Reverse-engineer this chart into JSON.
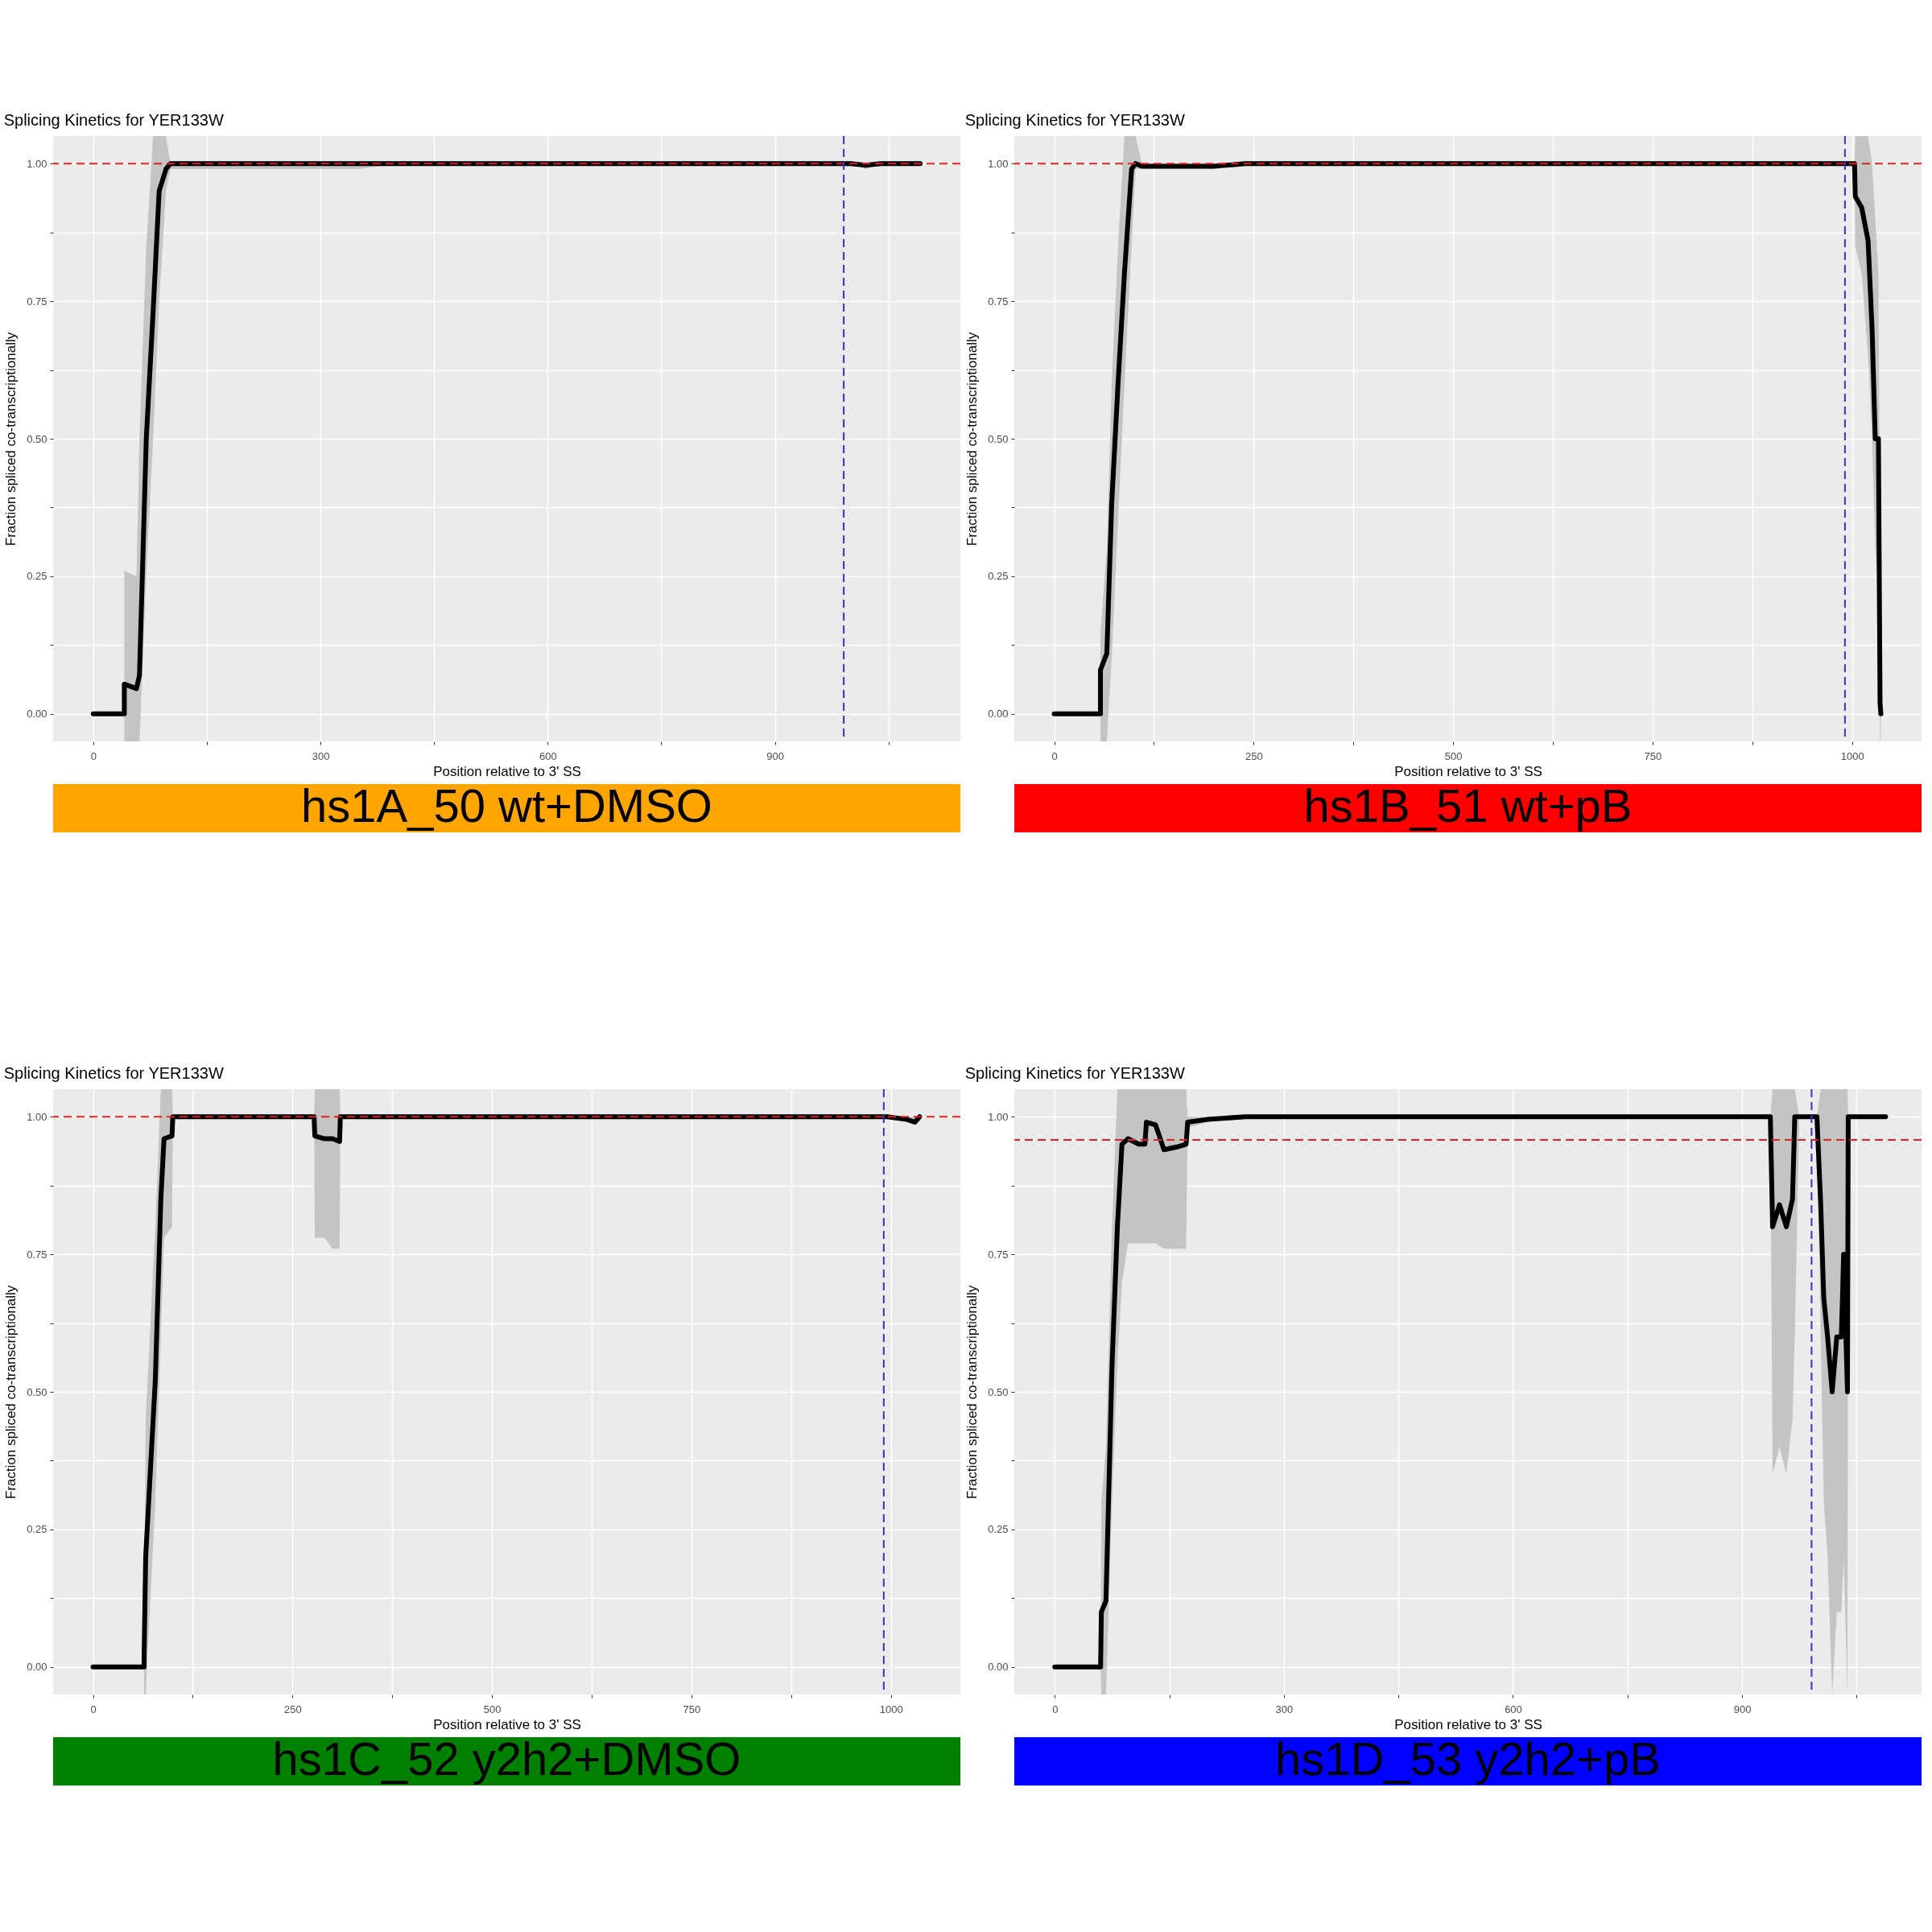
{
  "chart_data": [
    {
      "type": "line",
      "title": "Splicing Kinetics for YER133W",
      "xlabel": "Position relative to 3' SS",
      "ylabel": "Fraction spliced co-transcriptionally",
      "annotations": [
        "hs1A_50 wt+DMSO"
      ],
      "x": [
        0,
        41,
        41,
        57,
        61,
        70,
        79,
        87,
        96,
        102,
        350,
        400,
        1000,
        1020,
        1040,
        1092
      ],
      "series": [
        {
          "color": "#000000",
          "values": [
            0,
            0,
            0.054,
            0.046,
            0.07,
            0.5,
            0.73,
            0.95,
            0.99,
            1.0,
            1.0,
            1.0,
            1.0,
            0.997,
            1.0,
            1.0
          ],
          "lower": [
            0,
            0,
            -0.05,
            -0.05,
            -0.05,
            0.25,
            0.5,
            0.75,
            0.95,
            0.99,
            0.99,
            1.0,
            1.0,
            0.99,
            1.0,
            1.0
          ],
          "upper": [
            0,
            0,
            0.26,
            0.25,
            0.5,
            0.85,
            1.05,
            1.05,
            1.05,
            1.0,
            1.0,
            1.0,
            1.0,
            1.0,
            1.0,
            1.0
          ]
        }
      ],
      "xlim": [
        -53,
        1145
      ],
      "ylim": [
        -0.05,
        1.05
      ],
      "xticks": [
        0,
        {
          "value": 150,
          "label": null
        },
        300,
        {
          "value": 450,
          "label": null
        },
        600,
        {
          "value": 750,
          "label": null
        },
        900,
        {
          "value": 1050,
          "label": null
        }
      ],
      "yticks": [
        {
          "value": 0,
          "label": "0.00"
        },
        {
          "value": 0.125,
          "label": null
        },
        {
          "value": 0.25,
          "label": "0.25"
        },
        {
          "value": 0.375,
          "label": null
        },
        {
          "value": 0.5,
          "label": "0.50"
        },
        {
          "value": 0.625,
          "label": null
        },
        {
          "value": 0.75,
          "label": "0.75"
        },
        {
          "value": 0.875,
          "label": null
        },
        {
          "value": 1,
          "label": "1.00"
        }
      ],
      "grid": true,
      "ref_lines": [
        {
          "axis": "y",
          "value": 1,
          "color": "#dd2222",
          "line_style": "dashed"
        },
        {
          "axis": "x",
          "value": 991,
          "color": "#3333cc",
          "line_style": "dashed"
        }
      ]
    },
    {
      "type": "line",
      "title": "Splicing Kinetics for YER133W",
      "xlabel": "Position relative to 3' SS",
      "ylabel": "Fraction spliced co-transcriptionally",
      "annotations": [
        "hs1B_51 wt+pB"
      ],
      "x": [
        0,
        58,
        58,
        66,
        72,
        80,
        88,
        97,
        102,
        110,
        200,
        240,
        1003,
        1004,
        1012,
        1020,
        1025,
        1029,
        1033,
        1035,
        1036
      ],
      "series": [
        {
          "color": "#000000",
          "values": [
            0,
            0,
            0.08,
            0.11,
            0.38,
            0.6,
            0.8,
            0.99,
            1.0,
            0.995,
            0.995,
            1.0,
            1.0,
            0.94,
            0.92,
            0.86,
            0.7,
            0.5,
            0.5,
            0.02,
            0
          ],
          "lower": [
            0,
            0,
            -0.05,
            -0.05,
            0.1,
            0.35,
            0.6,
            0.85,
            0.99,
            0.99,
            0.99,
            1.0,
            1.0,
            0.85,
            0.8,
            0.65,
            0.5,
            0.3,
            0.2,
            -0.05,
            -0.05
          ],
          "upper": [
            0,
            0,
            0.15,
            0.3,
            0.6,
            0.85,
            1.05,
            1.05,
            1.05,
            1.0,
            1.0,
            1.0,
            1.0,
            1.05,
            1.05,
            1.05,
            1.0,
            0.9,
            0.8,
            0.3,
            0.2
          ]
        }
      ],
      "xlim": [
        -50,
        1087
      ],
      "ylim": [
        -0.05,
        1.05
      ],
      "xticks": [
        0,
        {
          "value": 125,
          "label": null
        },
        250,
        {
          "value": 375,
          "label": null
        },
        500,
        {
          "value": 625,
          "label": null
        },
        750,
        {
          "value": 875,
          "label": null
        },
        1000
      ],
      "yticks": [
        {
          "value": 0,
          "label": "0.00"
        },
        {
          "value": 0.125,
          "label": null
        },
        {
          "value": 0.25,
          "label": "0.25"
        },
        {
          "value": 0.375,
          "label": null
        },
        {
          "value": 0.5,
          "label": "0.50"
        },
        {
          "value": 0.625,
          "label": null
        },
        {
          "value": 0.75,
          "label": "0.75"
        },
        {
          "value": 0.875,
          "label": null
        },
        {
          "value": 1,
          "label": "1.00"
        }
      ],
      "grid": true,
      "ref_lines": [
        {
          "axis": "y",
          "value": 1,
          "color": "#dd2222",
          "line_style": "dashed"
        },
        {
          "axis": "x",
          "value": 991,
          "color": "#3333cc",
          "line_style": "dashed"
        }
      ]
    },
    {
      "type": "line",
      "title": "Splicing Kinetics for YER133W",
      "xlabel": "Position relative to 3' SS",
      "ylabel": "Fraction spliced co-transcriptionally",
      "annotations": [
        "hs1C_52 y2h2+DMSO"
      ],
      "x": [
        0,
        64,
        64,
        66,
        78,
        85,
        89,
        99,
        100,
        277,
        278,
        290,
        300,
        309,
        310,
        995,
        1020,
        1030,
        1036
      ],
      "series": [
        {
          "color": "#000000",
          "values": [
            0,
            0,
            0.02,
            0.2,
            0.52,
            0.85,
            0.96,
            0.965,
            1.0,
            1.0,
            0.965,
            0.96,
            0.96,
            0.955,
            1.0,
            1.0,
            0.995,
            0.99,
            1.0
          ],
          "lower": [
            0,
            0,
            -0.05,
            -0.05,
            0.3,
            0.6,
            0.78,
            0.8,
            1.0,
            1.0,
            0.78,
            0.78,
            0.76,
            0.76,
            1.0,
            1.0,
            0.99,
            0.985,
            1.0
          ],
          "upper": [
            0,
            0,
            0.1,
            0.45,
            0.8,
            1.05,
            1.05,
            1.05,
            1.0,
            1.0,
            1.05,
            1.05,
            1.05,
            1.05,
            1.0,
            1.0,
            1.0,
            1.0,
            1.0
          ]
        }
      ],
      "xlim": [
        -50,
        1087
      ],
      "ylim": [
        -0.05,
        1.05
      ],
      "xticks": [
        0,
        {
          "value": 125,
          "label": null
        },
        250,
        {
          "value": 375,
          "label": null
        },
        500,
        {
          "value": 625,
          "label": null
        },
        750,
        {
          "value": 875,
          "label": null
        },
        1000
      ],
      "yticks": [
        {
          "value": 0,
          "label": "0.00"
        },
        {
          "value": 0.125,
          "label": null
        },
        {
          "value": 0.25,
          "label": "0.25"
        },
        {
          "value": 0.375,
          "label": null
        },
        {
          "value": 0.5,
          "label": "0.50"
        },
        {
          "value": 0.625,
          "label": null
        },
        {
          "value": 0.75,
          "label": "0.75"
        },
        {
          "value": 0.875,
          "label": null
        },
        {
          "value": 1,
          "label": "1.00"
        }
      ],
      "grid": true,
      "ref_lines": [
        {
          "axis": "y",
          "value": 1,
          "color": "#dd2222",
          "line_style": "dashed"
        },
        {
          "axis": "x",
          "value": 991,
          "color": "#3333cc",
          "line_style": "dashed"
        }
      ]
    },
    {
      "type": "line",
      "title": "Splicing Kinetics for YER133W",
      "xlabel": "Position relative to 3' SS",
      "ylabel": "Fraction spliced co-transcriptionally",
      "annotations": [
        "hs1D_53 y2h2+pB"
      ],
      "x": [
        0,
        60,
        61,
        67,
        75,
        82,
        86,
        88,
        96,
        110,
        118,
        120,
        132,
        143,
        160,
        172,
        174,
        200,
        250,
        937,
        940,
        949,
        958,
        966,
        969,
        975,
        998,
        1003,
        1007,
        1012,
        1018,
        1024,
        1030,
        1033,
        1038,
        1039,
        1088
      ],
      "series": [
        {
          "color": "#000000",
          "values": [
            0,
            0,
            0.1,
            0.12,
            0.55,
            0.8,
            0.9,
            0.95,
            0.96,
            0.95,
            0.95,
            0.99,
            0.985,
            0.94,
            0.945,
            0.95,
            0.99,
            0.995,
            1.0,
            1.0,
            0.8,
            0.84,
            0.8,
            0.85,
            1.0,
            1.0,
            1.0,
            0.84,
            0.67,
            0.6,
            0.5,
            0.6,
            0.6,
            0.75,
            0.5,
            1.0,
            1.0
          ],
          "lower": [
            0,
            0,
            -0.05,
            -0.05,
            0.3,
            0.55,
            0.65,
            0.7,
            0.77,
            0.77,
            0.77,
            0.77,
            0.77,
            0.76,
            0.76,
            0.76,
            0.98,
            0.99,
            1.0,
            1.0,
            0.35,
            0.4,
            0.35,
            0.45,
            0.6,
            1.0,
            1.0,
            0.6,
            0.3,
            0.2,
            -0.05,
            0.1,
            0.1,
            0.2,
            -0.05,
            1.0,
            1.0
          ],
          "upper": [
            0,
            0,
            0.3,
            0.4,
            0.8,
            1.05,
            1.05,
            1.05,
            1.05,
            1.05,
            1.05,
            1.05,
            1.05,
            1.05,
            1.05,
            1.05,
            1.0,
            1.0,
            1.0,
            1.0,
            1.05,
            1.05,
            1.05,
            1.05,
            1.05,
            1.0,
            1.0,
            1.05,
            1.05,
            1.05,
            1.05,
            1.05,
            1.05,
            1.05,
            1.05,
            1.0,
            1.0
          ]
        }
      ],
      "xlim": [
        -53,
        1135
      ],
      "ylim": [
        -0.05,
        1.05
      ],
      "xticks": [
        0,
        {
          "value": 150,
          "label": null
        },
        300,
        {
          "value": 450,
          "label": null
        },
        600,
        {
          "value": 750,
          "label": null
        },
        900,
        {
          "value": 1050,
          "label": null
        }
      ],
      "yticks": [
        {
          "value": 0,
          "label": "0.00"
        },
        {
          "value": 0.125,
          "label": null
        },
        {
          "value": 0.25,
          "label": "0.25"
        },
        {
          "value": 0.375,
          "label": null
        },
        {
          "value": 0.5,
          "label": "0.50"
        },
        {
          "value": 0.625,
          "label": null
        },
        {
          "value": 0.75,
          "label": "0.75"
        },
        {
          "value": 0.875,
          "label": null
        },
        {
          "value": 1,
          "label": "1.00"
        }
      ],
      "grid": true,
      "ref_lines": [
        {
          "axis": "y",
          "value": 0.958,
          "color": "#dd2222",
          "line_style": "dashed"
        },
        {
          "axis": "x",
          "value": 991,
          "color": "#3333cc",
          "line_style": "dashed"
        }
      ]
    }
  ]
}
